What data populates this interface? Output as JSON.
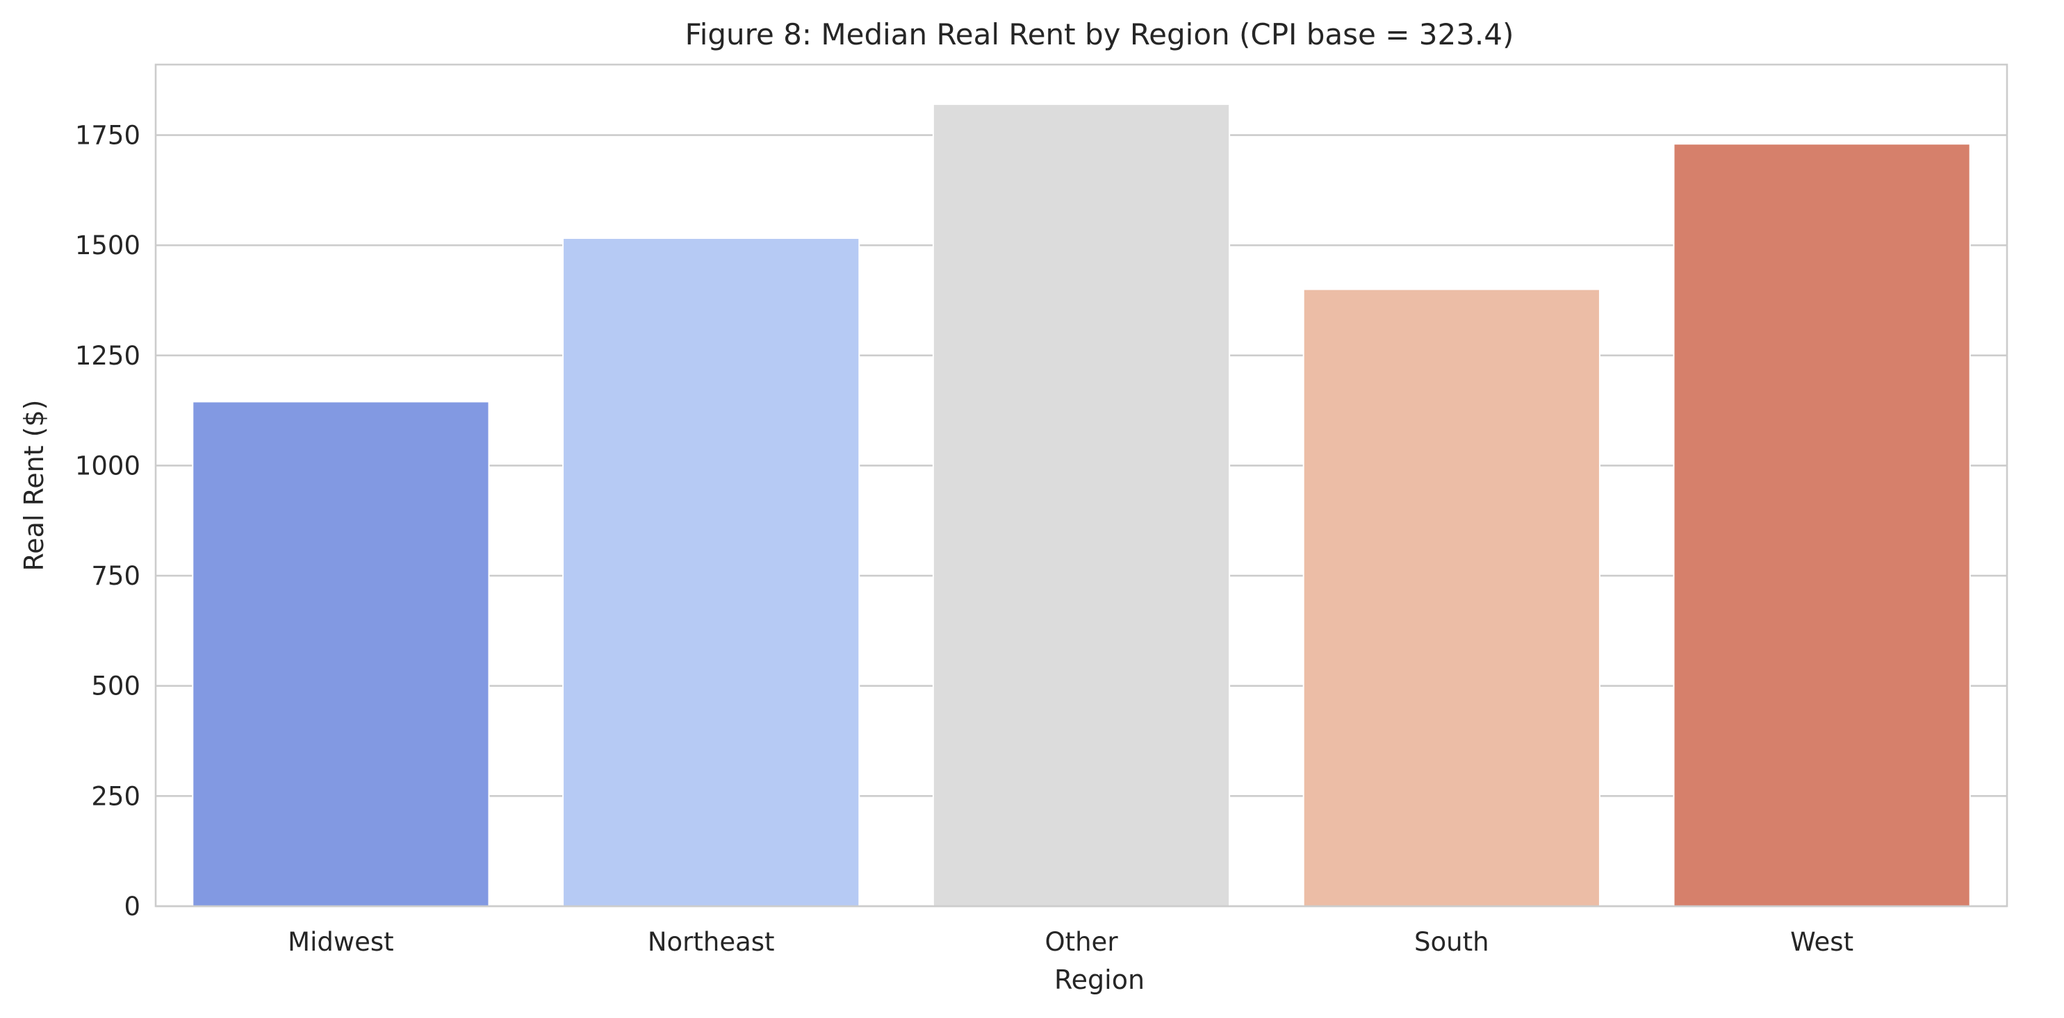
{
  "chart_data": {
    "type": "bar",
    "title": "Figure 8: Median Real Rent by Region (CPI base = 323.4)",
    "xlabel": "Region",
    "ylabel": "Real Rent ($)",
    "categories": [
      "Midwest",
      "Northeast",
      "Other",
      "South",
      "West"
    ],
    "values": [
      1145,
      1516,
      1820,
      1400,
      1730
    ],
    "colors": [
      "#8299e2",
      "#b6caf4",
      "#dcdcdc",
      "#ecbda6",
      "#d6806b"
    ],
    "ylim": [
      0,
      1910
    ],
    "yticks": [
      0,
      250,
      500,
      750,
      1000,
      1250,
      1500,
      1750
    ],
    "ytick_labels": [
      "0",
      "250",
      "500",
      "750",
      "1000",
      "1250",
      "1500",
      "1750"
    ],
    "grid": "horizontal",
    "legend": "none"
  }
}
